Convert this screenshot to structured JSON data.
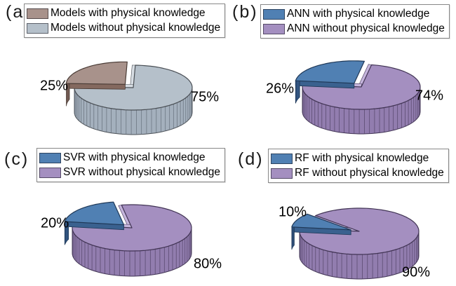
{
  "chart_data": [
    {
      "type": "pie",
      "panel": "(a)",
      "legend": [
        "Models with physical knowledge",
        "Models without physical knowledge"
      ],
      "categories": [
        "Models with physical knowledge",
        "Models without physical knowledge"
      ],
      "values": [
        25,
        75
      ],
      "labels": [
        "25%",
        "75%"
      ],
      "exploded": "Models with physical knowledge",
      "legend_position": "top",
      "colors": {
        "with": "#a8928b",
        "with_dark": "#84695f",
        "with_stripe": "#5f4c45",
        "outline_with": "#4a3c36",
        "without": "#b5c0ca",
        "without_wall": "#a4b0bd",
        "without_stripe": "#656f7b",
        "notch_highlight": "#d7dde3",
        "outline_without": "#4a4f55"
      }
    },
    {
      "type": "pie",
      "panel": "(b)",
      "legend": [
        "ANN with physical knowledge",
        "ANN without physical knowledge"
      ],
      "categories": [
        "ANN with physical knowledge",
        "ANN without physical knowledge"
      ],
      "values": [
        26,
        74
      ],
      "labels": [
        "26%",
        "74%"
      ],
      "exploded": "ANN with physical knowledge",
      "legend_position": "top",
      "colors": {
        "with": "#5080b3",
        "with_dark": "#3a618f",
        "with_stripe": "#27436a",
        "outline_with": "#1f3857",
        "without": "#a48fc0",
        "without_wall": "#927daf",
        "without_stripe": "#544569",
        "notch_highlight": "#c5b5dc",
        "outline_without": "#413454"
      }
    },
    {
      "type": "pie",
      "panel": "(c)",
      "legend": [
        "SVR with physical knowledge",
        "SVR without physical knowledge"
      ],
      "categories": [
        "SVR with physical knowledge",
        "SVR without physical knowledge"
      ],
      "values": [
        20,
        80
      ],
      "labels": [
        "20%",
        "80%"
      ],
      "exploded": "SVR with physical knowledge",
      "legend_position": "top",
      "colors": {
        "with": "#5080b3",
        "with_dark": "#3a618f",
        "with_stripe": "#27436a",
        "outline_with": "#1f3857",
        "without": "#a48fc0",
        "without_wall": "#927daf",
        "without_stripe": "#544569",
        "notch_highlight": "#c5b5dc",
        "outline_without": "#413454"
      }
    },
    {
      "type": "pie",
      "panel": "(d)",
      "legend": [
        "RF with physical knowledge",
        "RF without physical knowledge"
      ],
      "categories": [
        "RF with physical knowledge",
        "RF without physical knowledge"
      ],
      "values": [
        10,
        90
      ],
      "labels": [
        "10%",
        "90%"
      ],
      "exploded": "RF with physical knowledge",
      "legend_position": "top",
      "colors": {
        "with": "#5080b3",
        "with_dark": "#3a618f",
        "with_stripe": "#27436a",
        "outline_with": "#1f3857",
        "without": "#a48fc0",
        "without_wall": "#927daf",
        "without_stripe": "#544569",
        "notch_highlight": "#c5b5dc",
        "outline_without": "#413454"
      }
    }
  ]
}
